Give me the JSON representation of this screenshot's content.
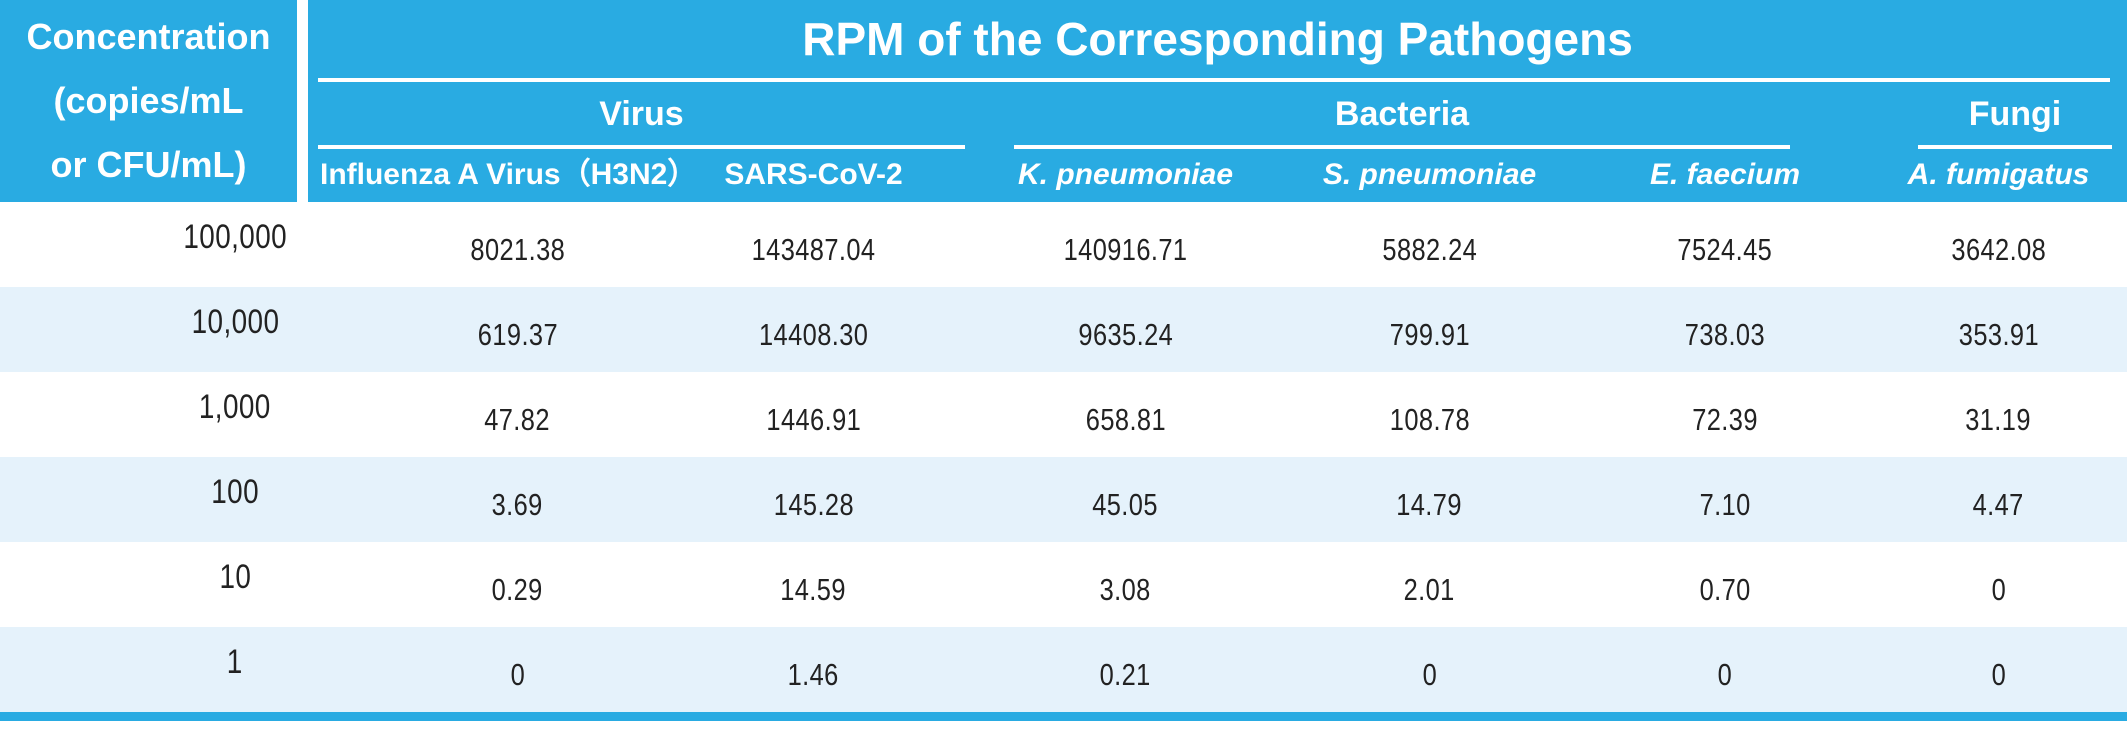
{
  "chart_data": {
    "type": "table",
    "title": "RPM of the Corresponding Pathogens",
    "row_header_lines": [
      "Concentration",
      "(copies/mL",
      "or CFU/mL)"
    ],
    "row_header": "Concentration (copies/mL or CFU/mL)",
    "groups": [
      {
        "label": "Virus"
      },
      {
        "label": "Bacteria"
      },
      {
        "label": "Fungi"
      }
    ],
    "columns": [
      {
        "name": "Influenza A Virus（H3N2）",
        "group": "Virus",
        "italic": false
      },
      {
        "name": "SARS-CoV-2",
        "group": "Virus",
        "italic": false
      },
      {
        "name": "K. pneumoniae",
        "group": "Bacteria",
        "italic": true
      },
      {
        "name": "S. pneumoniae",
        "group": "Bacteria",
        "italic": true
      },
      {
        "name": "E. faecium",
        "group": "Bacteria",
        "italic": true
      },
      {
        "name": "A. fumigatus",
        "group": "Fungi",
        "italic": true
      }
    ],
    "rows": [
      {
        "concentration": "100,000",
        "values": [
          "8021.38",
          "143487.04",
          "140916.71",
          "5882.24",
          "7524.45",
          "3642.08"
        ]
      },
      {
        "concentration": "10,000",
        "values": [
          "619.37",
          "14408.30",
          "9635.24",
          "799.91",
          "738.03",
          "353.91"
        ]
      },
      {
        "concentration": "1,000",
        "values": [
          "47.82",
          "1446.91",
          "658.81",
          "108.78",
          "72.39",
          "31.19"
        ]
      },
      {
        "concentration": "100",
        "values": [
          "3.69",
          "145.28",
          "45.05",
          "14.79",
          "7.10",
          "4.47"
        ]
      },
      {
        "concentration": "10",
        "values": [
          "0.29",
          "14.59",
          "3.08",
          "2.01",
          "0.70",
          "0"
        ]
      },
      {
        "concentration": "1",
        "values": [
          "0",
          "1.46",
          "0.21",
          "0",
          "0",
          "0"
        ]
      }
    ]
  },
  "colors": {
    "header_blue": "#29ABE2",
    "row_alt_blue": "#E5F2FB",
    "value_text": "#222222",
    "header_text": "#FFFFFF"
  }
}
